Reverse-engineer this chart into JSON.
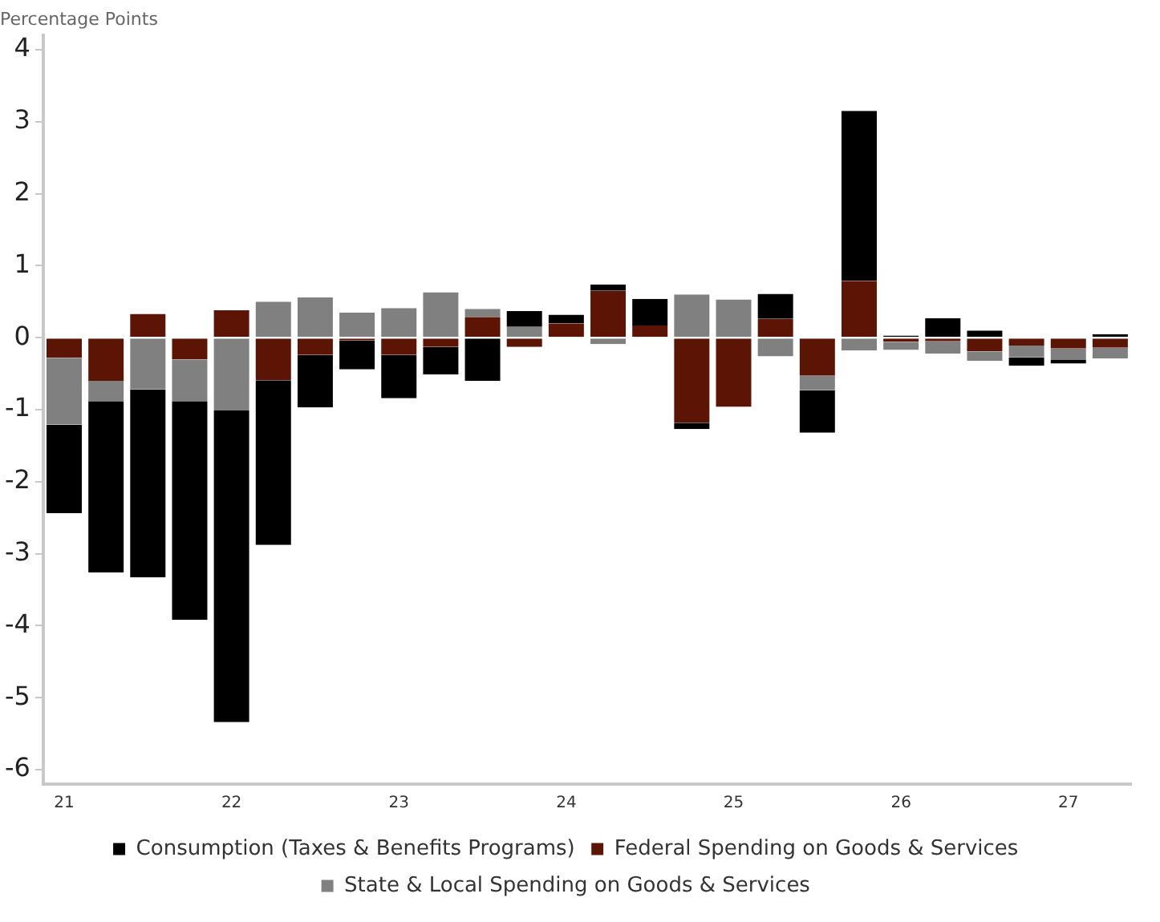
{
  "chart_data": {
    "type": "bar",
    "ylabel": "Percentage Points",
    "stacked": true,
    "categories": [
      "21",
      null,
      null,
      null,
      "22",
      null,
      null,
      null,
      "23",
      null,
      null,
      null,
      "24",
      null,
      null,
      null,
      "25",
      null,
      null,
      null,
      "26",
      null,
      null,
      null,
      "27",
      null
    ],
    "series": [
      {
        "name": "Federal Spending on Goods & Services",
        "color": "#5c1505",
        "values": [
          -0.28,
          -0.6,
          0.33,
          -0.3,
          0.38,
          -0.59,
          -0.24,
          -0.04,
          -0.24,
          -0.13,
          0.29,
          -0.13,
          0.2,
          0.65,
          0.17,
          -1.18,
          -0.96,
          0.26,
          -0.53,
          0.79,
          -0.06,
          -0.05,
          -0.19,
          -0.11,
          -0.15,
          -0.14
        ]
      },
      {
        "name": "State & Local Spending on Goods & Services",
        "color": "#808080",
        "values": [
          -0.93,
          -0.28,
          -0.72,
          -0.58,
          -1.01,
          0.5,
          0.56,
          0.35,
          0.41,
          0.63,
          0.11,
          0.15,
          0,
          -0.09,
          0,
          0.6,
          0.53,
          -0.26,
          -0.2,
          -0.18,
          -0.11,
          -0.17,
          -0.13,
          -0.16,
          -0.16,
          -0.15
        ]
      },
      {
        "name": "Consumption (Taxes & Benefits Programs)",
        "color": "#000000",
        "values": [
          -1.23,
          -2.38,
          -2.61,
          -3.04,
          -4.33,
          -2.29,
          -0.73,
          -0.4,
          -0.6,
          -0.38,
          -0.6,
          0.22,
          0.12,
          0.09,
          0.37,
          -0.09,
          0,
          0.35,
          -0.59,
          2.36,
          0.03,
          0.27,
          0.1,
          -0.12,
          -0.05,
          0.05
        ]
      }
    ],
    "ylim": [
      -6.2,
      4.2
    ],
    "yticks": [
      -6,
      -5,
      -4,
      -3,
      -2,
      -1,
      0,
      1,
      2,
      3,
      4
    ],
    "grid": false,
    "legend": "bottom"
  }
}
